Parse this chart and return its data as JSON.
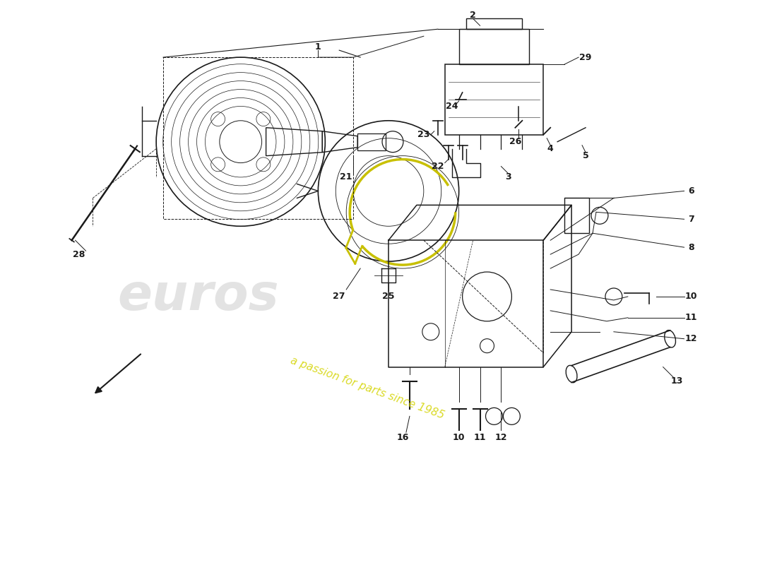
{
  "background_color": "#ffffff",
  "line_color": "#1a1a1a",
  "watermark_euros_color": "#d8d8d8",
  "watermark_text_color": "#d4d400",
  "yellow_ring_color": "#c8c000",
  "figsize": [
    11.0,
    8.0
  ],
  "dpi": 100
}
